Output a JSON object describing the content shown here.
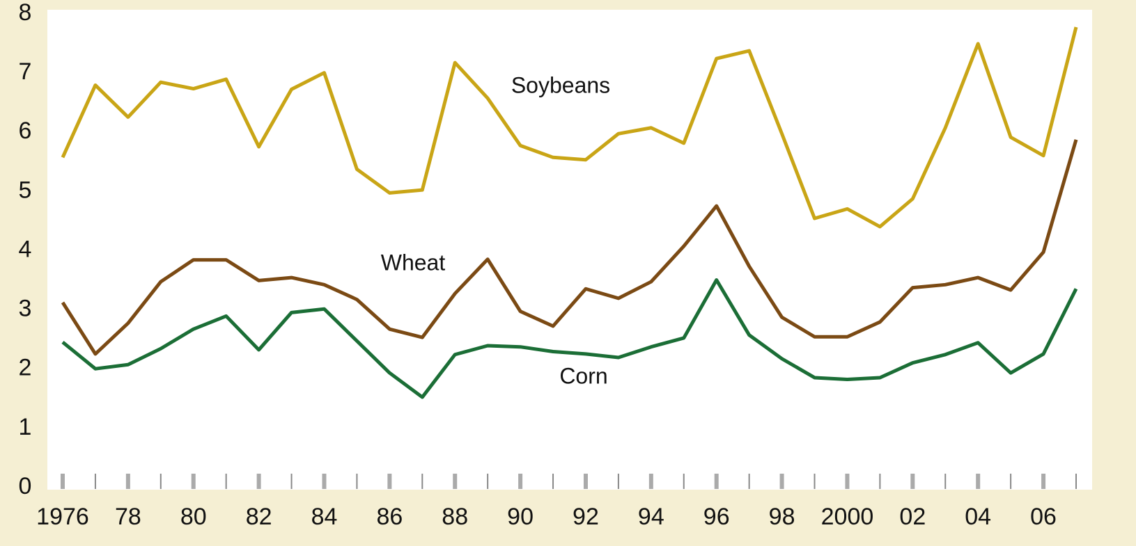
{
  "chart_data": {
    "type": "line",
    "x": [
      1976,
      1977,
      1978,
      1979,
      1980,
      1981,
      1982,
      1983,
      1984,
      1985,
      1986,
      1987,
      1988,
      1989,
      1990,
      1991,
      1992,
      1993,
      1994,
      1995,
      1996,
      1997,
      1998,
      1999,
      2000,
      2001,
      2002,
      2003,
      2004,
      2005,
      2006,
      2007
    ],
    "series": [
      {
        "name": "Soybeans",
        "color": "#c9a516",
        "values": [
          5.6,
          6.82,
          6.28,
          6.87,
          6.76,
          6.92,
          5.78,
          6.75,
          7.03,
          5.4,
          5.0,
          5.05,
          7.2,
          6.6,
          5.8,
          5.6,
          5.56,
          6.0,
          6.1,
          5.84,
          7.27,
          7.4,
          6.0,
          4.57,
          4.73,
          4.43,
          4.9,
          6.1,
          7.52,
          5.94,
          5.63,
          7.8
        ]
      },
      {
        "name": "Wheat",
        "color": "#7b4a14",
        "values": [
          3.15,
          2.28,
          2.8,
          3.5,
          3.87,
          3.87,
          3.52,
          3.57,
          3.45,
          3.2,
          2.7,
          2.56,
          3.3,
          3.88,
          3.0,
          2.75,
          3.38,
          3.22,
          3.5,
          4.1,
          4.78,
          3.76,
          2.9,
          2.57,
          2.57,
          2.82,
          3.4,
          3.45,
          3.57,
          3.36,
          4.0,
          5.9
        ]
      },
      {
        "name": "Corn",
        "color": "#1b6e36",
        "values": [
          2.48,
          2.03,
          2.1,
          2.37,
          2.7,
          2.92,
          2.35,
          2.98,
          3.04,
          2.5,
          1.96,
          1.55,
          2.27,
          2.42,
          2.4,
          2.32,
          2.28,
          2.22,
          2.4,
          2.55,
          3.53,
          2.6,
          2.2,
          1.88,
          1.85,
          1.88,
          2.13,
          2.27,
          2.47,
          1.96,
          2.28,
          3.38
        ]
      }
    ],
    "xlim": [
      1976,
      2007
    ],
    "xticks": [
      1976,
      {
        "value": 1978,
        "label": "78"
      },
      {
        "value": 1980,
        "label": "80"
      },
      {
        "value": 1982,
        "label": "82"
      },
      {
        "value": 1984,
        "label": "84"
      },
      {
        "value": 1986,
        "label": "86"
      },
      {
        "value": 1988,
        "label": "88"
      },
      {
        "value": 1990,
        "label": "90"
      },
      {
        "value": 1992,
        "label": "92"
      },
      {
        "value": 1994,
        "label": "94"
      },
      {
        "value": 1996,
        "label": "96"
      },
      {
        "value": 1998,
        "label": "98"
      },
      2000,
      {
        "value": 2002,
        "label": "02"
      },
      {
        "value": 2004,
        "label": "04"
      },
      {
        "value": 2006,
        "label": "06"
      }
    ],
    "ylim": [
      0,
      8
    ],
    "yticks": [
      0,
      1,
      2,
      3,
      4,
      5,
      6,
      7,
      8
    ],
    "grid": false
  }
}
